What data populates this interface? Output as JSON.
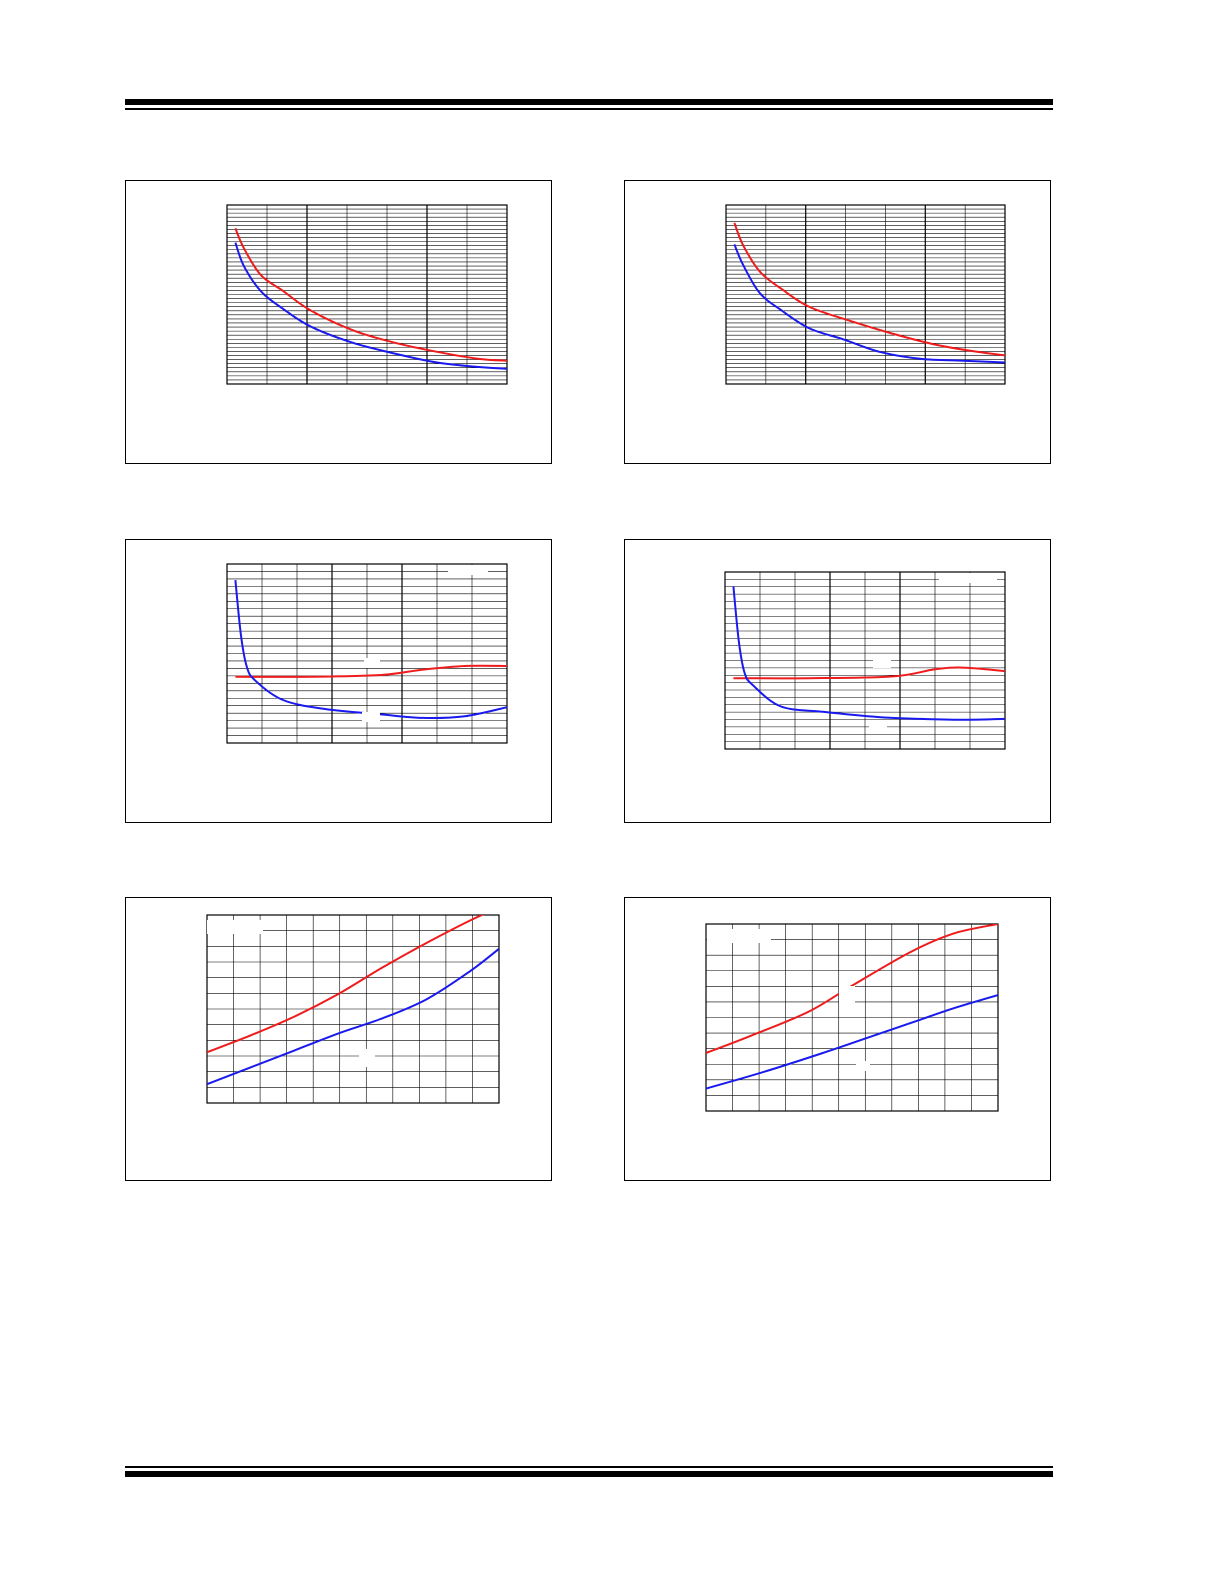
{
  "colors": {
    "red_series": "#ee1c1c",
    "blue_series": "#1a1aee",
    "grid": "#000000"
  },
  "chart_data": [
    {
      "id": "chart1",
      "type": "line",
      "grid": true,
      "rows": 44,
      "cols": 7,
      "major_cols": [
        2,
        5
      ],
      "xlim": [
        0,
        1
      ],
      "ylim": [
        0,
        1
      ],
      "series": [
        {
          "color": "red",
          "points": [
            [
              0.03,
              0.87
            ],
            [
              0.06,
              0.76
            ],
            [
              0.12,
              0.61
            ],
            [
              0.2,
              0.52
            ],
            [
              0.3,
              0.41
            ],
            [
              0.45,
              0.3
            ],
            [
              0.6,
              0.23
            ],
            [
              0.75,
              0.18
            ],
            [
              0.9,
              0.14
            ],
            [
              1.0,
              0.13
            ]
          ]
        },
        {
          "color": "blue",
          "points": [
            [
              0.03,
              0.79
            ],
            [
              0.06,
              0.66
            ],
            [
              0.12,
              0.52
            ],
            [
              0.2,
              0.42
            ],
            [
              0.3,
              0.32
            ],
            [
              0.45,
              0.23
            ],
            [
              0.6,
              0.17
            ],
            [
              0.75,
              0.12
            ],
            [
              0.9,
              0.095
            ],
            [
              1.0,
              0.085
            ]
          ]
        }
      ]
    },
    {
      "id": "chart2",
      "type": "line",
      "grid": true,
      "rows": 44,
      "cols": 7,
      "major_cols": [
        2,
        5
      ],
      "xlim": [
        0,
        1
      ],
      "ylim": [
        0,
        1
      ],
      "series": [
        {
          "color": "red",
          "points": [
            [
              0.03,
              0.9
            ],
            [
              0.06,
              0.78
            ],
            [
              0.12,
              0.63
            ],
            [
              0.2,
              0.53
            ],
            [
              0.3,
              0.43
            ],
            [
              0.45,
              0.35
            ],
            [
              0.6,
              0.28
            ],
            [
              0.75,
              0.22
            ],
            [
              0.9,
              0.18
            ],
            [
              1.0,
              0.16
            ]
          ]
        },
        {
          "color": "blue",
          "points": [
            [
              0.03,
              0.78
            ],
            [
              0.06,
              0.67
            ],
            [
              0.12,
              0.51
            ],
            [
              0.2,
              0.41
            ],
            [
              0.3,
              0.31
            ],
            [
              0.42,
              0.25
            ],
            [
              0.55,
              0.18
            ],
            [
              0.7,
              0.14
            ],
            [
              0.85,
              0.13
            ],
            [
              1.0,
              0.12
            ]
          ]
        }
      ]
    },
    {
      "id": "chart3",
      "type": "line",
      "grid": true,
      "rows": 24,
      "cols": 8,
      "major_cols": [
        3,
        5
      ],
      "xlim": [
        0,
        1
      ],
      "ylim": [
        0,
        1
      ],
      "series": [
        {
          "color": "red",
          "points": [
            [
              0.03,
              0.37
            ],
            [
              0.3,
              0.37
            ],
            [
              0.55,
              0.38
            ],
            [
              0.7,
              0.41
            ],
            [
              0.85,
              0.43
            ],
            [
              1.0,
              0.43
            ]
          ]
        },
        {
          "color": "blue",
          "points": [
            [
              0.03,
              0.91
            ],
            [
              0.05,
              0.6
            ],
            [
              0.07,
              0.43
            ],
            [
              0.1,
              0.35
            ],
            [
              0.2,
              0.24
            ],
            [
              0.35,
              0.19
            ],
            [
              0.55,
              0.16
            ],
            [
              0.7,
              0.14
            ],
            [
              0.85,
              0.15
            ],
            [
              1.0,
              0.2
            ]
          ]
        }
      ]
    },
    {
      "id": "chart4",
      "type": "line",
      "grid": true,
      "rows": 24,
      "cols": 8,
      "major_cols": [
        3,
        5
      ],
      "xlim": [
        0,
        1
      ],
      "ylim": [
        0,
        1
      ],
      "series": [
        {
          "color": "red",
          "points": [
            [
              0.03,
              0.4
            ],
            [
              0.3,
              0.4
            ],
            [
              0.6,
              0.41
            ],
            [
              0.75,
              0.45
            ],
            [
              0.85,
              0.46
            ],
            [
              1.0,
              0.44
            ]
          ]
        },
        {
          "color": "blue",
          "points": [
            [
              0.03,
              0.92
            ],
            [
              0.05,
              0.6
            ],
            [
              0.07,
              0.43
            ],
            [
              0.1,
              0.36
            ],
            [
              0.2,
              0.24
            ],
            [
              0.35,
              0.21
            ],
            [
              0.55,
              0.18
            ],
            [
              0.7,
              0.17
            ],
            [
              0.85,
              0.165
            ],
            [
              1.0,
              0.17
            ]
          ]
        }
      ]
    },
    {
      "id": "chart5",
      "type": "line",
      "grid": true,
      "rows": 12,
      "cols": 11,
      "major_cols": [],
      "xlim": [
        0,
        1
      ],
      "ylim": [
        0,
        1
      ],
      "series": [
        {
          "color": "red",
          "points": [
            [
              0.0,
              0.27
            ],
            [
              0.15,
              0.36
            ],
            [
              0.3,
              0.46
            ],
            [
              0.45,
              0.58
            ],
            [
              0.6,
              0.72
            ],
            [
              0.75,
              0.85
            ],
            [
              0.9,
              0.97
            ],
            [
              1.0,
              1.04
            ]
          ]
        },
        {
          "color": "blue",
          "points": [
            [
              0.0,
              0.1
            ],
            [
              0.15,
              0.19
            ],
            [
              0.3,
              0.28
            ],
            [
              0.45,
              0.37
            ],
            [
              0.6,
              0.45
            ],
            [
              0.75,
              0.55
            ],
            [
              0.9,
              0.7
            ],
            [
              1.0,
              0.82
            ]
          ]
        }
      ]
    },
    {
      "id": "chart6",
      "type": "line",
      "grid": true,
      "rows": 12,
      "cols": 11,
      "major_cols": [],
      "xlim": [
        0,
        1
      ],
      "ylim": [
        0,
        1
      ],
      "series": [
        {
          "color": "red",
          "points": [
            [
              0.0,
              0.31
            ],
            [
              0.15,
              0.4
            ],
            [
              0.35,
              0.53
            ],
            [
              0.5,
              0.67
            ],
            [
              0.7,
              0.85
            ],
            [
              0.85,
              0.95
            ],
            [
              1.0,
              1.0
            ]
          ]
        },
        {
          "color": "blue",
          "points": [
            [
              0.0,
              0.12
            ],
            [
              0.2,
              0.21
            ],
            [
              0.4,
              0.31
            ],
            [
              0.55,
              0.39
            ],
            [
              0.7,
              0.47
            ],
            [
              0.85,
              0.55
            ],
            [
              1.0,
              0.62
            ]
          ]
        }
      ]
    }
  ]
}
